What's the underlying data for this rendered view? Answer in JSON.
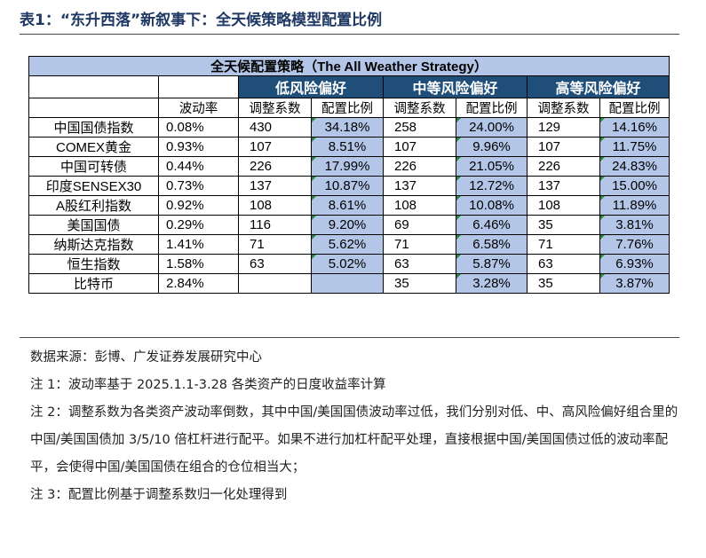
{
  "title": "表1：“东升西落”新叙事下：全天候策略模型配置比例",
  "table": {
    "banner": "全天候配置策略（The All Weather Strategy）",
    "groups": [
      "低风险偏好",
      "中等风险偏好",
      "高等风险偏好"
    ],
    "sub_headers": {
      "volatility": "波动率",
      "coef": "调整系数",
      "ratio": "配置比例"
    },
    "rows": [
      {
        "name": "中国国债指数",
        "vol": "0.08%",
        "low_c": "430",
        "low_r": "34.18%",
        "mid_c": "258",
        "mid_r": "24.00%",
        "high_c": "129",
        "high_r": "14.16%"
      },
      {
        "name": "COMEX黄金",
        "vol": "0.93%",
        "low_c": "107",
        "low_r": "8.51%",
        "mid_c": "107",
        "mid_r": "9.96%",
        "high_c": "107",
        "high_r": "11.75%"
      },
      {
        "name": "中国可转债",
        "vol": "0.44%",
        "low_c": "226",
        "low_r": "17.99%",
        "mid_c": "226",
        "mid_r": "21.05%",
        "high_c": "226",
        "high_r": "24.83%"
      },
      {
        "name": "印度SENSEX30",
        "vol": "0.73%",
        "low_c": "137",
        "low_r": "10.87%",
        "mid_c": "137",
        "mid_r": "12.72%",
        "high_c": "137",
        "high_r": "15.00%"
      },
      {
        "name": "A股红利指数",
        "vol": "0.92%",
        "low_c": "108",
        "low_r": "8.61%",
        "mid_c": "108",
        "mid_r": "10.08%",
        "high_c": "108",
        "high_r": "11.89%"
      },
      {
        "name": "美国国债",
        "vol": "0.29%",
        "low_c": "116",
        "low_r": "9.20%",
        "mid_c": "69",
        "mid_r": "6.46%",
        "high_c": "35",
        "high_r": "3.81%"
      },
      {
        "name": "纳斯达克指数",
        "vol": "1.41%",
        "low_c": "71",
        "low_r": "5.62%",
        "mid_c": "71",
        "mid_r": "6.58%",
        "high_c": "71",
        "high_r": "7.76%"
      },
      {
        "name": "恒生指数",
        "vol": "1.58%",
        "low_c": "63",
        "low_r": "5.02%",
        "mid_c": "63",
        "mid_r": "5.87%",
        "high_c": "63",
        "high_r": "6.93%"
      },
      {
        "name": "比特币",
        "vol": "2.84%",
        "low_c": "",
        "low_r": "",
        "mid_c": "35",
        "mid_r": "3.28%",
        "high_c": "35",
        "high_r": "3.87%"
      }
    ]
  },
  "notes": [
    "数据来源：彭博、广发证券发展研究中心",
    "注 1：波动率基于 2025.1.1-3.28 各类资产的日度收益率计算",
    "注 2：调整系数为各类资产波动率倒数，其中中国/美国国债波动率过低，我们分别对低、中、高风险偏好组合里的中国/美国国债加 3/5/10 倍杠杆进行配平。如果不进行加杠杆配平处理，直接根据中国/美国国债过低的波动率配平，会使得中国/美国国债在组合的仓位相当大；",
    "注 3：配置比例基于调整系数归一化处理得到"
  ],
  "colors": {
    "title": "#1f3864",
    "header_bg": "#1f4e79",
    "highlight_bg": "#b4c6e7"
  }
}
